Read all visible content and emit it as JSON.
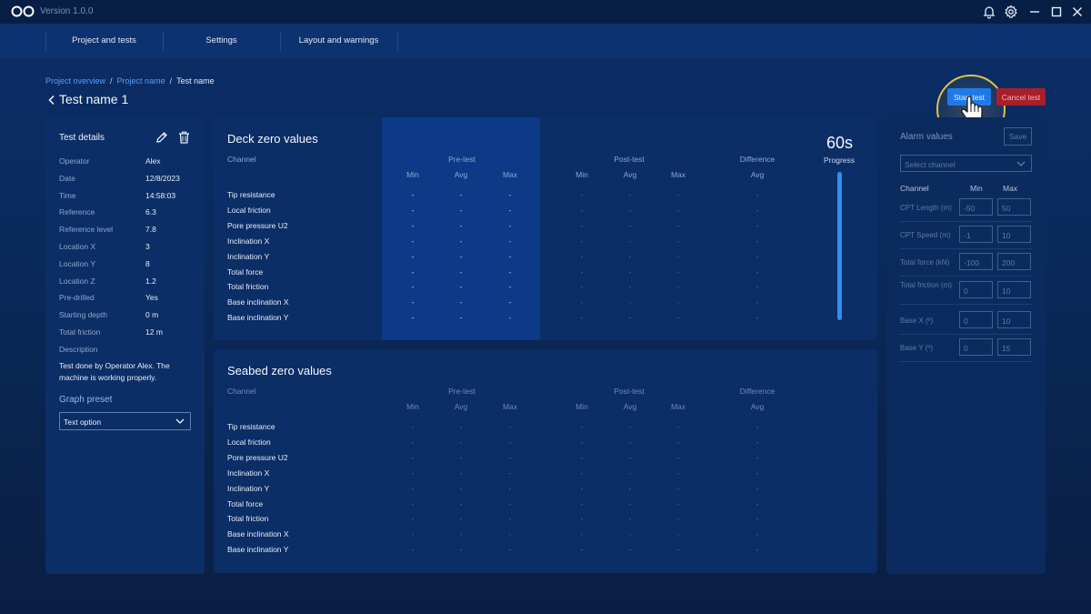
{
  "titlebar": {
    "version": "Version 1.0.0",
    "icons": [
      "logo-icon",
      "bell-icon",
      "gear-icon",
      "minimize-icon",
      "maximize-icon",
      "close-icon"
    ]
  },
  "nav": {
    "items": [
      {
        "label": "Project and tests"
      },
      {
        "label": "Settings"
      },
      {
        "label": "Layout and warnings"
      }
    ]
  },
  "breadcrumb": {
    "items": [
      "Project overview",
      "Project name",
      "Test name"
    ],
    "separator": "/"
  },
  "page": {
    "title": "Test name 1"
  },
  "actions": {
    "start": "Start test",
    "cancel": "Cancel test"
  },
  "details": {
    "title": "Test details",
    "rows": [
      {
        "label": "Operator",
        "value": "Alex"
      },
      {
        "label": "Date",
        "value": "12/8/2023"
      },
      {
        "label": "Time",
        "value": "14:58:03"
      },
      {
        "label": "Reference",
        "value": "6.3"
      },
      {
        "label": "Reference level",
        "value": "7.8"
      },
      {
        "label": "Location X",
        "value": "3"
      },
      {
        "label": "Location Y",
        "value": "8"
      },
      {
        "label": "Location Z",
        "value": "1.2"
      },
      {
        "label": "Pre-drilled",
        "value": "Yes"
      },
      {
        "label": "Starting depth",
        "value": "0 m"
      },
      {
        "label": "Total friction",
        "value": "12 m"
      }
    ],
    "description_label": "Description",
    "description": "Test done by Operator Alex. The machine is working properly.",
    "preset_title": "Graph preset",
    "preset_value": "Text option"
  },
  "tables": {
    "channel_header": "Channel",
    "groups": [
      "Pre-test",
      "Post-test",
      "Difference"
    ],
    "subheaders": [
      "Min",
      "Avg",
      "Max",
      "Min",
      "Avg",
      "Max",
      "Avg"
    ],
    "channels": [
      "Tip resistance",
      "Local friction",
      "Pore pressure U2",
      "Inclination X",
      "Inclination Y",
      "Total force",
      "Total friction",
      "Base inclination X",
      "Base inclination Y"
    ],
    "empty_value": "-",
    "deck": {
      "title": "Deck zero values"
    },
    "seabed": {
      "title": "Seabed zero values"
    }
  },
  "progress": {
    "timer": "60s",
    "label": "Progress",
    "value": 1.0
  },
  "alarms": {
    "title": "Alarm values",
    "save": "Save",
    "select_placeholder": "Select channel",
    "headers": {
      "channel": "Channel",
      "min": "Min",
      "max": "Max"
    },
    "rows": [
      {
        "label": "CPT Length (m)",
        "min": "-50",
        "max": "50"
      },
      {
        "label": "CPT Speed (m)",
        "min": "-1",
        "max": "10"
      },
      {
        "label": "Total force (kN)",
        "min": "-100",
        "max": "200"
      },
      {
        "label": "Total friction (m)",
        "min": "0",
        "max": "10"
      },
      {
        "label": "Base X (º)",
        "min": "0",
        "max": "10"
      },
      {
        "label": "Base Y (º)",
        "min": "0",
        "max": "15"
      }
    ]
  },
  "colors": {
    "accent": "#1f7ae8",
    "danger": "#a81e2a",
    "link": "#5a9cff",
    "highlight": "#e5c04a"
  }
}
